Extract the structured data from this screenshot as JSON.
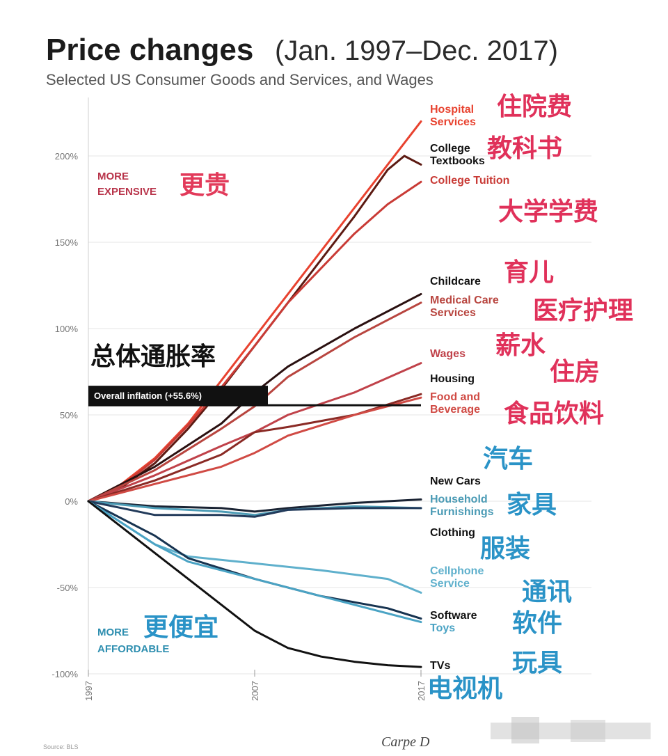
{
  "chart_data": {
    "type": "line",
    "title": "Price changes",
    "title_period": "(Jan. 1997–Dec. 2017)",
    "subtitle": "Selected US Consumer Goods and Services, and Wages",
    "x_ticks": [
      "1997",
      "2007",
      "2017"
    ],
    "xlim": [
      1997,
      2017
    ],
    "y_ticks": [
      "200%",
      "150%",
      "100%",
      "50%",
      "0%",
      "-50%",
      "-100%"
    ],
    "ylim": [
      -100,
      225
    ],
    "grid": true,
    "zones": {
      "expensive": {
        "en": "MORE\nEXPENSIVE",
        "zh": "更贵"
      },
      "affordable": {
        "en": "MORE\nAFFORDABLE",
        "zh": "更便宜"
      }
    },
    "overall_inflation": {
      "label": "Overall inflation (+55.6%)",
      "zh": "总体通胀率",
      "value": 55.6,
      "color": "#111111"
    },
    "series": [
      {
        "name": "Hospital Services",
        "zh": "住院费",
        "color": "#e8422f",
        "x": [
          1997,
          1999,
          2001,
          2003,
          2005,
          2007,
          2009,
          2011,
          2013,
          2015,
          2017
        ],
        "values": [
          0,
          10,
          25,
          45,
          70,
          95,
          120,
          145,
          170,
          195,
          220
        ]
      },
      {
        "name": "College Textbooks",
        "zh": "教科书",
        "color": "#5c1a12",
        "x": [
          1997,
          1999,
          2001,
          2003,
          2005,
          2007,
          2009,
          2011,
          2013,
          2015,
          2016,
          2017
        ],
        "values": [
          0,
          8,
          22,
          42,
          65,
          90,
          115,
          140,
          165,
          192,
          200,
          195
        ]
      },
      {
        "name": "College Tuition",
        "zh": "大学学费",
        "color": "#c93b36",
        "x": [
          1997,
          1999,
          2001,
          2003,
          2005,
          2007,
          2009,
          2011,
          2013,
          2015,
          2017
        ],
        "values": [
          0,
          9,
          24,
          44,
          66,
          90,
          115,
          135,
          155,
          172,
          185
        ]
      },
      {
        "name": "Childcare",
        "zh": "育儿",
        "color": "#2a1010",
        "x": [
          1997,
          2001,
          2005,
          2007,
          2009,
          2013,
          2017
        ],
        "values": [
          0,
          20,
          45,
          63,
          78,
          100,
          120
        ]
      },
      {
        "name": "Medical Care Services",
        "zh": "医疗护理",
        "color": "#b8453f",
        "x": [
          1997,
          2001,
          2005,
          2007,
          2009,
          2013,
          2017
        ],
        "values": [
          0,
          18,
          42,
          55,
          72,
          95,
          115
        ]
      },
      {
        "name": "Wages",
        "zh": "薪水",
        "color": "#c0424a",
        "x": [
          1997,
          2001,
          2005,
          2007,
          2009,
          2013,
          2017
        ],
        "values": [
          0,
          15,
          32,
          40,
          50,
          63,
          80
        ]
      },
      {
        "name": "Housing",
        "zh": "住房",
        "color": "#8a2a25",
        "x": [
          1997,
          2001,
          2005,
          2007,
          2009,
          2013,
          2017
        ],
        "values": [
          0,
          12,
          27,
          40,
          43,
          50,
          62
        ]
      },
      {
        "name": "Food and Beverage",
        "zh": "食品饮料",
        "color": "#d04a44",
        "x": [
          1997,
          2001,
          2005,
          2007,
          2009,
          2013,
          2017
        ],
        "values": [
          0,
          10,
          20,
          28,
          38,
          50,
          60
        ]
      },
      {
        "name": "New Cars",
        "zh": "汽车",
        "color": "#1a2333",
        "x": [
          1997,
          2001,
          2005,
          2007,
          2009,
          2013,
          2017
        ],
        "values": [
          0,
          -3,
          -4,
          -6,
          -4,
          -1,
          1
        ]
      },
      {
        "name": "Household Furnishings",
        "zh": "家具",
        "color": "#4b9bb5",
        "x": [
          1997,
          2001,
          2005,
          2007,
          2009,
          2013,
          2017
        ],
        "values": [
          0,
          -4,
          -6,
          -8,
          -5,
          -3,
          -4
        ]
      },
      {
        "name": "Clothing",
        "zh": "服装",
        "color": "#223a5a",
        "x": [
          1997,
          2001,
          2005,
          2007,
          2009,
          2013,
          2017
        ],
        "values": [
          0,
          -8,
          -8,
          -9,
          -5,
          -4,
          -4
        ]
      },
      {
        "name": "Cellphone Service",
        "zh": "通讯",
        "color": "#5fb0cc",
        "x": [
          1997,
          2001,
          2003,
          2007,
          2011,
          2015,
          2017
        ],
        "values": [
          0,
          -25,
          -32,
          -36,
          -40,
          -45,
          -53
        ]
      },
      {
        "name": "Software",
        "zh": "软件",
        "color": "#173350",
        "x": [
          1997,
          2001,
          2003,
          2007,
          2011,
          2015,
          2017
        ],
        "values": [
          0,
          -20,
          -33,
          -45,
          -55,
          -62,
          -68
        ]
      },
      {
        "name": "Toys",
        "zh": "玩具",
        "color": "#4aa3c4",
        "x": [
          1997,
          2001,
          2003,
          2007,
          2011,
          2015,
          2017
        ],
        "values": [
          0,
          -25,
          -35,
          -45,
          -55,
          -65,
          -70
        ]
      },
      {
        "name": "TVs",
        "zh": "电视机",
        "color": "#111111",
        "x": [
          1997,
          2001,
          2003,
          2005,
          2007,
          2009,
          2011,
          2013,
          2015,
          2017
        ],
        "values": [
          0,
          -30,
          -45,
          -60,
          -75,
          -85,
          -90,
          -93,
          -95,
          -96
        ]
      }
    ]
  },
  "source": "Source: BLS",
  "signature": "Carpe D"
}
